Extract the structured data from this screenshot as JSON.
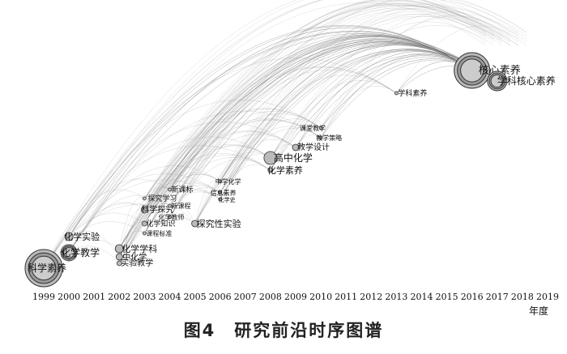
{
  "timeline": {
    "years": [
      "1999",
      "2000",
      "2001",
      "2002",
      "2003",
      "2004",
      "2005",
      "2006",
      "2007",
      "2008",
      "2009",
      "2010",
      "2011",
      "2012",
      "2013",
      "2014",
      "2015",
      "2016",
      "2017",
      "2018",
      "2019"
    ],
    "axis_unit": "年度"
  },
  "caption": "图4　研究前沿时序图谱",
  "nodes": [
    {
      "label": "科学素养",
      "year": "1999",
      "level": "large"
    },
    {
      "label": "化学教学",
      "year": "2000",
      "level": "medium"
    },
    {
      "label": "化学实验",
      "year": "2000",
      "level": "small"
    },
    {
      "label": "化学学科",
      "year": "2002",
      "level": "small"
    },
    {
      "label": "中化学",
      "year": "2002",
      "level": "tiny"
    },
    {
      "label": "实验教学",
      "year": "2002",
      "level": "tiny"
    },
    {
      "label": "课程标准",
      "year": "2003",
      "level": "tiny"
    },
    {
      "label": "化学知识",
      "year": "2003",
      "level": "tiny"
    },
    {
      "label": "科学探究",
      "year": "2003",
      "level": "small"
    },
    {
      "label": "探究学习",
      "year": "2003",
      "level": "tiny"
    },
    {
      "label": "新课标",
      "year": "2004",
      "level": "tiny"
    },
    {
      "label": "新课程",
      "year": "2004",
      "level": "tiny"
    },
    {
      "label": "化学教师",
      "year": "2004",
      "level": "tiny"
    },
    {
      "label": "探究性实验",
      "year": "2005",
      "level": "small"
    },
    {
      "label": "中学化学",
      "year": "2006",
      "level": "tiny"
    },
    {
      "label": "信息素养",
      "year": "2006",
      "level": "tiny"
    },
    {
      "label": "化学史",
      "year": "2006",
      "level": "tiny"
    },
    {
      "label": "高中化学",
      "year": "2008",
      "level": "medium"
    },
    {
      "label": "化学素养",
      "year": "2008",
      "level": "small"
    },
    {
      "label": "教学设计",
      "year": "2009",
      "level": "small"
    },
    {
      "label": "教学策略",
      "year": "2010",
      "level": "tiny"
    },
    {
      "label": "课堂教学",
      "year": "2010",
      "level": "tiny"
    },
    {
      "label": "学科素养",
      "year": "2013",
      "level": "tiny"
    },
    {
      "label": "核心素养",
      "year": "2016",
      "level": "large"
    },
    {
      "label": "学科核心素养",
      "year": "2017",
      "level": "medium"
    }
  ]
}
